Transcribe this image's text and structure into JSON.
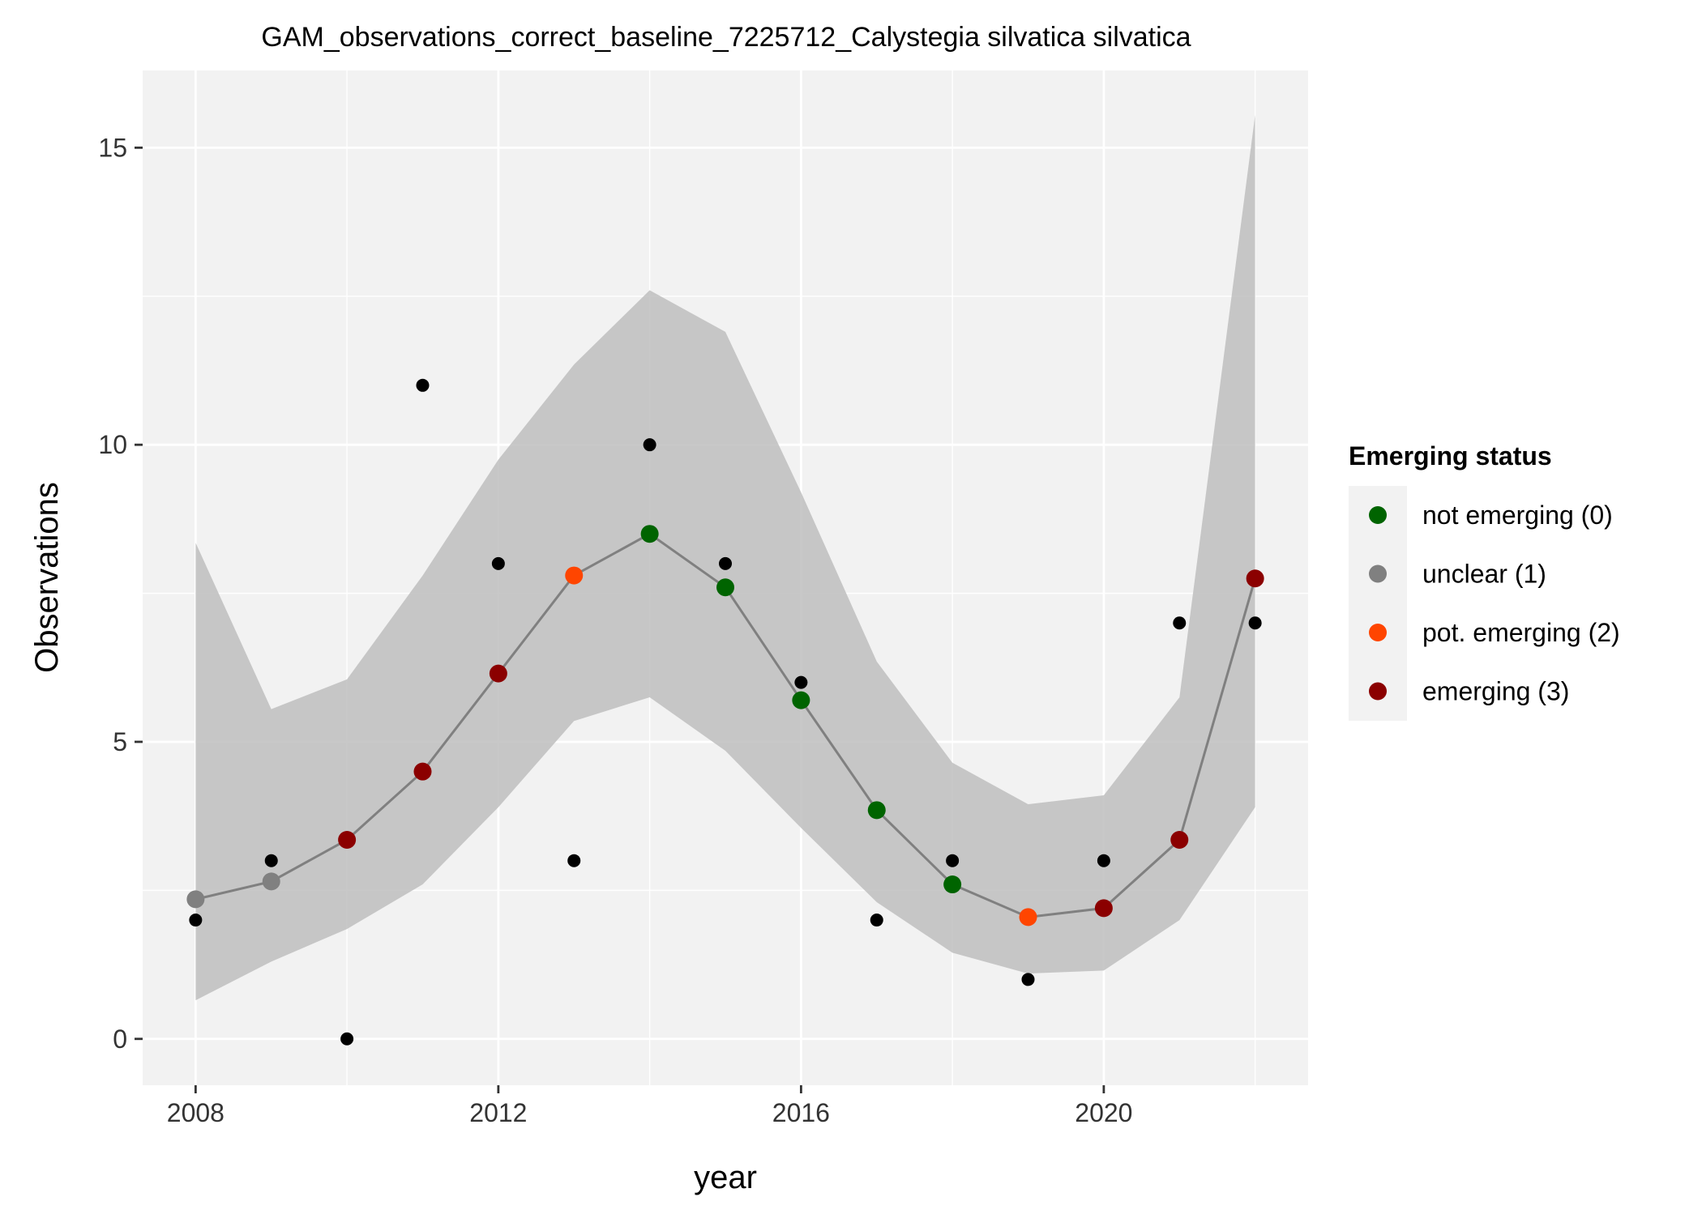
{
  "chart_data": {
    "type": "scatter",
    "title": "GAM_observations_correct_baseline_7225712_Calystegia silvatica silvatica",
    "xlabel": "year",
    "ylabel": "Observations",
    "xlim": [
      2007.3,
      2022.7
    ],
    "ylim": [
      -0.78,
      16.3
    ],
    "x_ticks": [
      2008,
      2012,
      2016,
      2020
    ],
    "y_ticks": [
      0,
      5,
      10,
      15
    ],
    "grid": true,
    "observed": {
      "x": [
        2008,
        2009,
        2010,
        2011,
        2012,
        2013,
        2014,
        2015,
        2016,
        2017,
        2018,
        2019,
        2020,
        2021,
        2022
      ],
      "y": [
        2,
        3,
        0,
        11,
        8,
        3,
        10,
        8,
        6,
        2,
        3,
        1,
        3,
        7,
        7
      ]
    },
    "fitted": {
      "x": [
        2008,
        2009,
        2010,
        2011,
        2012,
        2013,
        2014,
        2015,
        2016,
        2017,
        2018,
        2019,
        2020,
        2021,
        2022
      ],
      "y": [
        2.35,
        2.65,
        3.35,
        4.5,
        6.15,
        7.8,
        8.5,
        7.6,
        5.7,
        3.85,
        2.6,
        2.05,
        2.2,
        3.35,
        7.75
      ],
      "status": [
        1,
        1,
        3,
        3,
        3,
        2,
        0,
        0,
        0,
        0,
        0,
        2,
        3,
        3,
        3
      ]
    },
    "band": {
      "x": [
        2008,
        2009,
        2010,
        2011,
        2012,
        2013,
        2014,
        2015,
        2016,
        2017,
        2018,
        2019,
        2020,
        2021,
        2022
      ],
      "lower": [
        0.65,
        1.3,
        1.85,
        2.6,
        3.9,
        5.35,
        5.75,
        4.85,
        3.55,
        2.3,
        1.45,
        1.1,
        1.15,
        2.0,
        3.9
      ],
      "upper": [
        8.35,
        5.55,
        6.05,
        7.8,
        9.75,
        11.35,
        12.6,
        11.9,
        9.2,
        6.35,
        4.65,
        3.95,
        4.1,
        5.75,
        15.55
      ]
    },
    "legend": {
      "title": "Emerging status",
      "placement": "right",
      "items": [
        {
          "label": "not emerging (0)",
          "color": "#006400"
        },
        {
          "label": "unclear (1)",
          "color": "#808080"
        },
        {
          "label": "pot. emerging (2)",
          "color": "#FF4500"
        },
        {
          "label": "emerging (3)",
          "color": "#8B0000"
        }
      ]
    },
    "colors": {
      "panel": "#F2F2F2",
      "grid": "#FFFFFF",
      "band": "#BEBEBE",
      "line": "#808080",
      "observed_point": "#000000"
    }
  }
}
